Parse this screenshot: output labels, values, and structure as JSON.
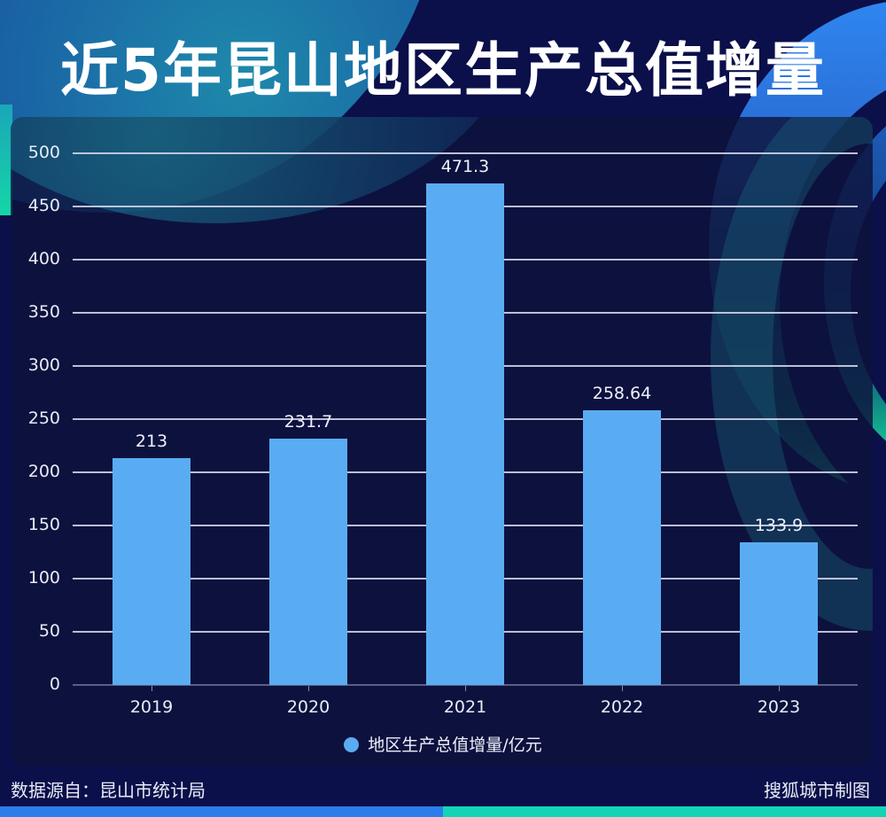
{
  "title": "近5年昆山地区生产总值增量",
  "legend": {
    "label": "地区生产总值增量/亿元",
    "color": "#5aacf2"
  },
  "footer": {
    "source": "数据源自：昆山市统计局",
    "credit": "搜狐城市制图"
  },
  "y_ticks": [
    "500",
    "450",
    "400",
    "350",
    "300",
    "250",
    "200",
    "150",
    "100",
    "50",
    "0"
  ],
  "bars": [
    {
      "year": "2019",
      "value": 213,
      "label": "213"
    },
    {
      "year": "2020",
      "value": 231.7,
      "label": "231.7"
    },
    {
      "year": "2021",
      "value": 471.3,
      "label": "471.3"
    },
    {
      "year": "2022",
      "value": 258.64,
      "label": "258.64"
    },
    {
      "year": "2023",
      "value": 133.9,
      "label": "133.9"
    }
  ],
  "chart_data": {
    "type": "bar",
    "title": "近5年昆山地区生产总值增量",
    "categories": [
      "2019",
      "2020",
      "2021",
      "2022",
      "2023"
    ],
    "series": [
      {
        "name": "地区生产总值增量/亿元",
        "values": [
          213,
          231.7,
          471.3,
          258.64,
          133.9
        ],
        "color": "#5aacf2"
      }
    ],
    "xlabel": "",
    "ylabel": "",
    "ylim": [
      0,
      500
    ],
    "yticks": [
      0,
      50,
      100,
      150,
      200,
      250,
      300,
      350,
      400,
      450,
      500
    ],
    "grid": true,
    "legend_position": "bottom",
    "data_labels": true,
    "source": "数据源自：昆山市统计局",
    "credit": "搜狐城市制图"
  }
}
